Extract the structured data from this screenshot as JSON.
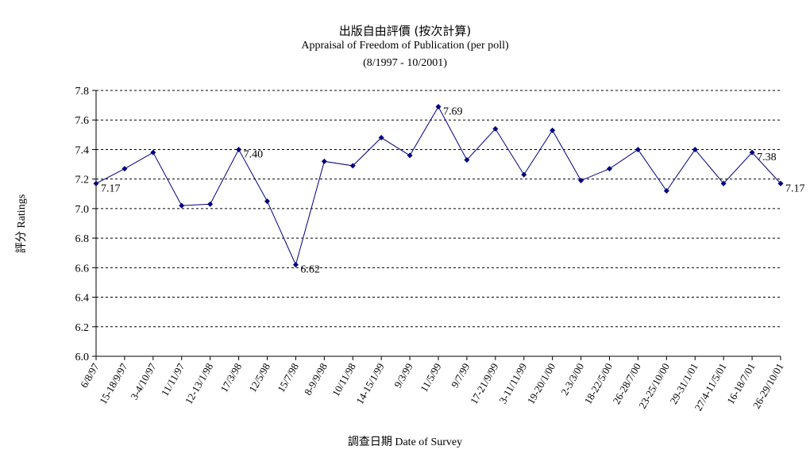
{
  "chart_data": {
    "type": "line",
    "title": "出版自由評價 (按次計算)",
    "subtitle": "Appraisal of Freedom of Publication (per poll)",
    "subtitle2": "(8/1997 - 10/2001)",
    "xlabel": "調查日期 Date of Survey",
    "ylabel": "評分 Ratings",
    "ylim": [
      6.0,
      7.8
    ],
    "yticks": [
      "6.0",
      "6.2",
      "6.4",
      "6.6",
      "6.8",
      "7.0",
      "7.2",
      "7.4",
      "7.6",
      "7.8"
    ],
    "grid": true,
    "line_color": "#000080",
    "categories": [
      "6/8/97",
      "15-18/9/97",
      "3-4/10/97",
      "11/11/97",
      "12-13/1/98",
      "17/3/98",
      "12/5/98",
      "15/7/98",
      "8-9/9/98",
      "10/11/98",
      "14-15/1/99",
      "9/3/99",
      "11/5/99",
      "9/7/99",
      "17-21/9/99",
      "3-11/11/99",
      "19-20/1/00",
      "2-3/3/00",
      "18-22/5/00",
      "26-28/7/00",
      "23-25/10/00",
      "29-31/1/01",
      "27/4-11/5/01",
      "16-18/7/01",
      "26-29/10/01"
    ],
    "values": [
      7.17,
      7.27,
      7.38,
      7.02,
      7.03,
      7.4,
      7.05,
      6.62,
      7.32,
      7.29,
      7.48,
      7.36,
      7.69,
      7.33,
      7.54,
      7.23,
      7.53,
      7.19,
      7.27,
      7.4,
      7.12,
      7.4,
      7.17,
      7.38,
      7.17
    ],
    "data_labels": [
      {
        "index": 0,
        "text": "7.17"
      },
      {
        "index": 5,
        "text": "7.40"
      },
      {
        "index": 7,
        "text": "6.62"
      },
      {
        "index": 12,
        "text": "7.69"
      },
      {
        "index": 23,
        "text": "7.38"
      },
      {
        "index": 24,
        "text": "7.17"
      }
    ]
  }
}
